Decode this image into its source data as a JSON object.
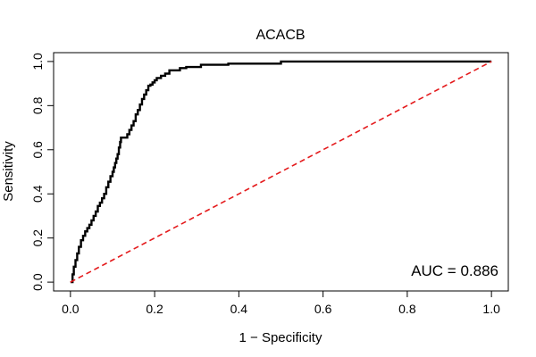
{
  "chart_data": {
    "type": "line",
    "title": "ACACB",
    "xlabel": "1 − Specificity",
    "ylabel": "Sensitivity",
    "xlim": [
      -0.04,
      1.04
    ],
    "ylim": [
      -0.04,
      1.04
    ],
    "x_ticks": [
      0.0,
      0.2,
      0.4,
      0.6,
      0.8,
      1.0
    ],
    "x_tick_labels": [
      "0.0",
      "0.2",
      "0.4",
      "0.6",
      "0.8",
      "1.0"
    ],
    "y_ticks": [
      0.0,
      0.2,
      0.4,
      0.6,
      0.8,
      1.0
    ],
    "y_tick_labels": [
      "0.0",
      "0.2",
      "0.4",
      "0.6",
      "0.8",
      "1.0"
    ],
    "grid": false,
    "annotation": "AUC = 0.886",
    "series": [
      {
        "color": "#000000",
        "style": "solid",
        "x": [
          0.0,
          0.005,
          0.005,
          0.008,
          0.008,
          0.012,
          0.012,
          0.016,
          0.016,
          0.02,
          0.02,
          0.025,
          0.025,
          0.03,
          0.03,
          0.035,
          0.035,
          0.04,
          0.04,
          0.045,
          0.045,
          0.05,
          0.05,
          0.055,
          0.055,
          0.06,
          0.06,
          0.065,
          0.065,
          0.07,
          0.07,
          0.075,
          0.075,
          0.08,
          0.08,
          0.085,
          0.085,
          0.09,
          0.09,
          0.095,
          0.095,
          0.1,
          0.1,
          0.103,
          0.103,
          0.106,
          0.106,
          0.109,
          0.109,
          0.112,
          0.112,
          0.115,
          0.115,
          0.118,
          0.118,
          0.12,
          0.12,
          0.123,
          0.123,
          0.126,
          0.126,
          0.13,
          0.13,
          0.135,
          0.135,
          0.14,
          0.14,
          0.145,
          0.145,
          0.15,
          0.15,
          0.155,
          0.155,
          0.16,
          0.16,
          0.165,
          0.165,
          0.17,
          0.17,
          0.175,
          0.175,
          0.18,
          0.18,
          0.185,
          0.185,
          0.19,
          0.19,
          0.195,
          0.195,
          0.2,
          0.2,
          0.205,
          0.205,
          0.215,
          0.215,
          0.225,
          0.225,
          0.235,
          0.235,
          0.26,
          0.26,
          0.275,
          0.275,
          0.31,
          0.31,
          0.375,
          0.375,
          0.5,
          0.5,
          1.0
        ],
        "y": [
          0.0,
          0.0,
          0.035,
          0.035,
          0.07,
          0.07,
          0.1,
          0.1,
          0.13,
          0.13,
          0.16,
          0.16,
          0.19,
          0.19,
          0.21,
          0.21,
          0.23,
          0.23,
          0.245,
          0.245,
          0.26,
          0.26,
          0.28,
          0.28,
          0.3,
          0.3,
          0.32,
          0.32,
          0.345,
          0.345,
          0.36,
          0.36,
          0.38,
          0.38,
          0.4,
          0.4,
          0.43,
          0.43,
          0.455,
          0.455,
          0.48,
          0.48,
          0.5,
          0.5,
          0.52,
          0.52,
          0.54,
          0.54,
          0.56,
          0.56,
          0.58,
          0.58,
          0.61,
          0.61,
          0.635,
          0.635,
          0.655,
          0.655,
          0.655,
          0.655,
          0.655,
          0.655,
          0.655,
          0.655,
          0.67,
          0.67,
          0.69,
          0.69,
          0.71,
          0.71,
          0.73,
          0.73,
          0.76,
          0.76,
          0.78,
          0.78,
          0.805,
          0.805,
          0.83,
          0.83,
          0.85,
          0.85,
          0.87,
          0.87,
          0.89,
          0.89,
          0.895,
          0.895,
          0.905,
          0.905,
          0.915,
          0.915,
          0.925,
          0.925,
          0.935,
          0.935,
          0.945,
          0.945,
          0.96,
          0.96,
          0.97,
          0.97,
          0.975,
          0.975,
          0.985,
          0.985,
          0.99,
          0.99,
          1.0,
          1.0
        ]
      },
      {
        "color": "#e41a1c",
        "style": "dashed",
        "x": [
          0.0,
          1.0
        ],
        "y": [
          0.0,
          1.0
        ]
      }
    ]
  }
}
